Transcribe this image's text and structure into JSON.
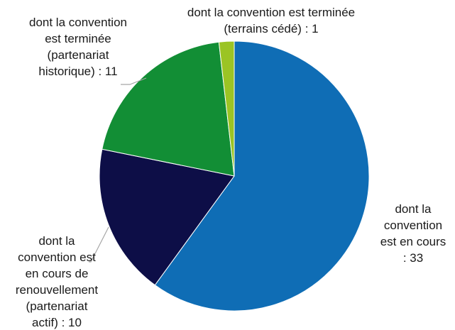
{
  "chart_data": {
    "type": "pie",
    "title": "",
    "start_angle_deg": 0,
    "direction": "clockwise",
    "slices": [
      {
        "name": "dont la convention est en cours",
        "value": 33,
        "color": "#0F6DB5",
        "label_lines": [
          "dont la",
          "convention",
          "est en cours",
          ": 33"
        ]
      },
      {
        "name": "dont la convention est en cours de renouvellement (partenariat actif)",
        "value": 10,
        "color": "#0D0E47",
        "label_lines": [
          "dont la",
          "convention est",
          "en cours de",
          "renouvellement",
          "(partenariat",
          "actif) : 10"
        ]
      },
      {
        "name": "dont la convention est terminée (partenariat historique)",
        "value": 11,
        "color": "#128E35",
        "label_lines": [
          "dont la convention",
          "est terminée",
          "(partenariat",
          "historique) : 11"
        ]
      },
      {
        "name": "dont la convention est terminée (terrains cédé)",
        "value": 1,
        "color": "#9BC424",
        "label_lines": [
          "dont la convention est terminée",
          "(terrains cédé) : 1"
        ]
      }
    ],
    "legend": "none"
  }
}
